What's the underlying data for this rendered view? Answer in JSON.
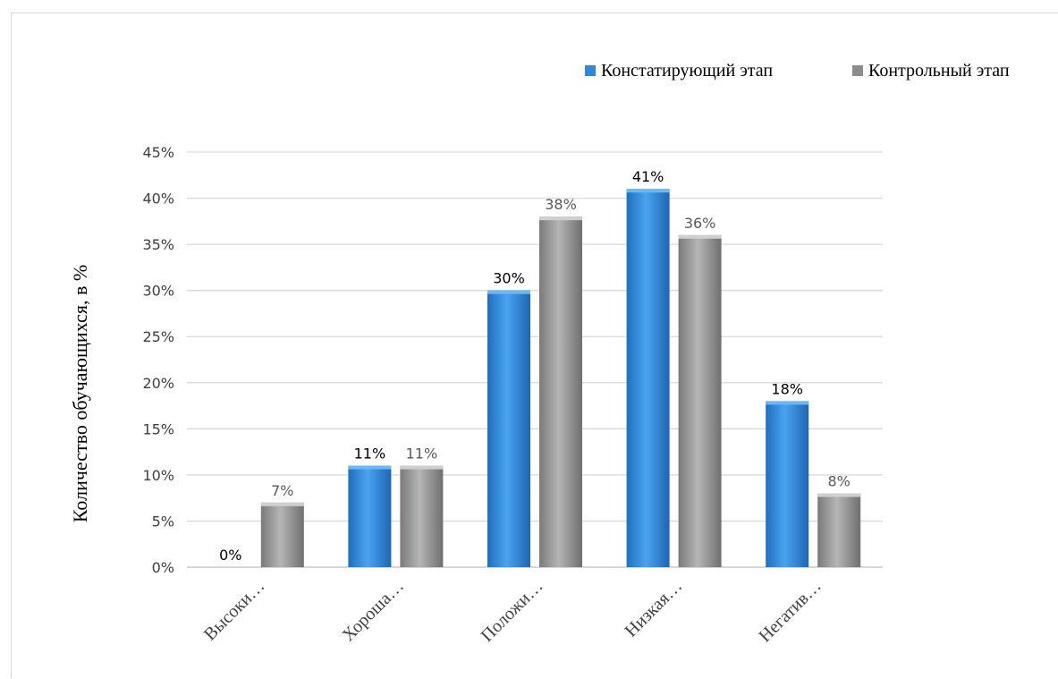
{
  "chart_data": {
    "type": "bar",
    "categories": [
      "Высоки…",
      "Хороша…",
      "Положи…",
      "Низкая…",
      "Негатив…"
    ],
    "series": [
      {
        "name": "Констатирующий этап",
        "values": [
          0,
          11,
          30,
          41,
          18
        ],
        "color": "#2e86de"
      },
      {
        "name": "Контрольный этап",
        "values": [
          7,
          11,
          38,
          36,
          8
        ],
        "color": "#8c8c8c"
      }
    ],
    "data_labels": [
      [
        "0%",
        "11%",
        "30%",
        "41%",
        "18%"
      ],
      [
        "7%",
        "11%",
        "38%",
        "36%",
        "8%"
      ]
    ],
    "y_ticks": [
      "0%",
      "5%",
      "10%",
      "15%",
      "20%",
      "25%",
      "30%",
      "35%",
      "40%",
      "45%"
    ],
    "ylim": [
      0,
      45
    ],
    "ylabel": "Количество обучающихся, в %",
    "xlabel": "",
    "title": "",
    "legend_position": "top-right",
    "grid": true
  }
}
